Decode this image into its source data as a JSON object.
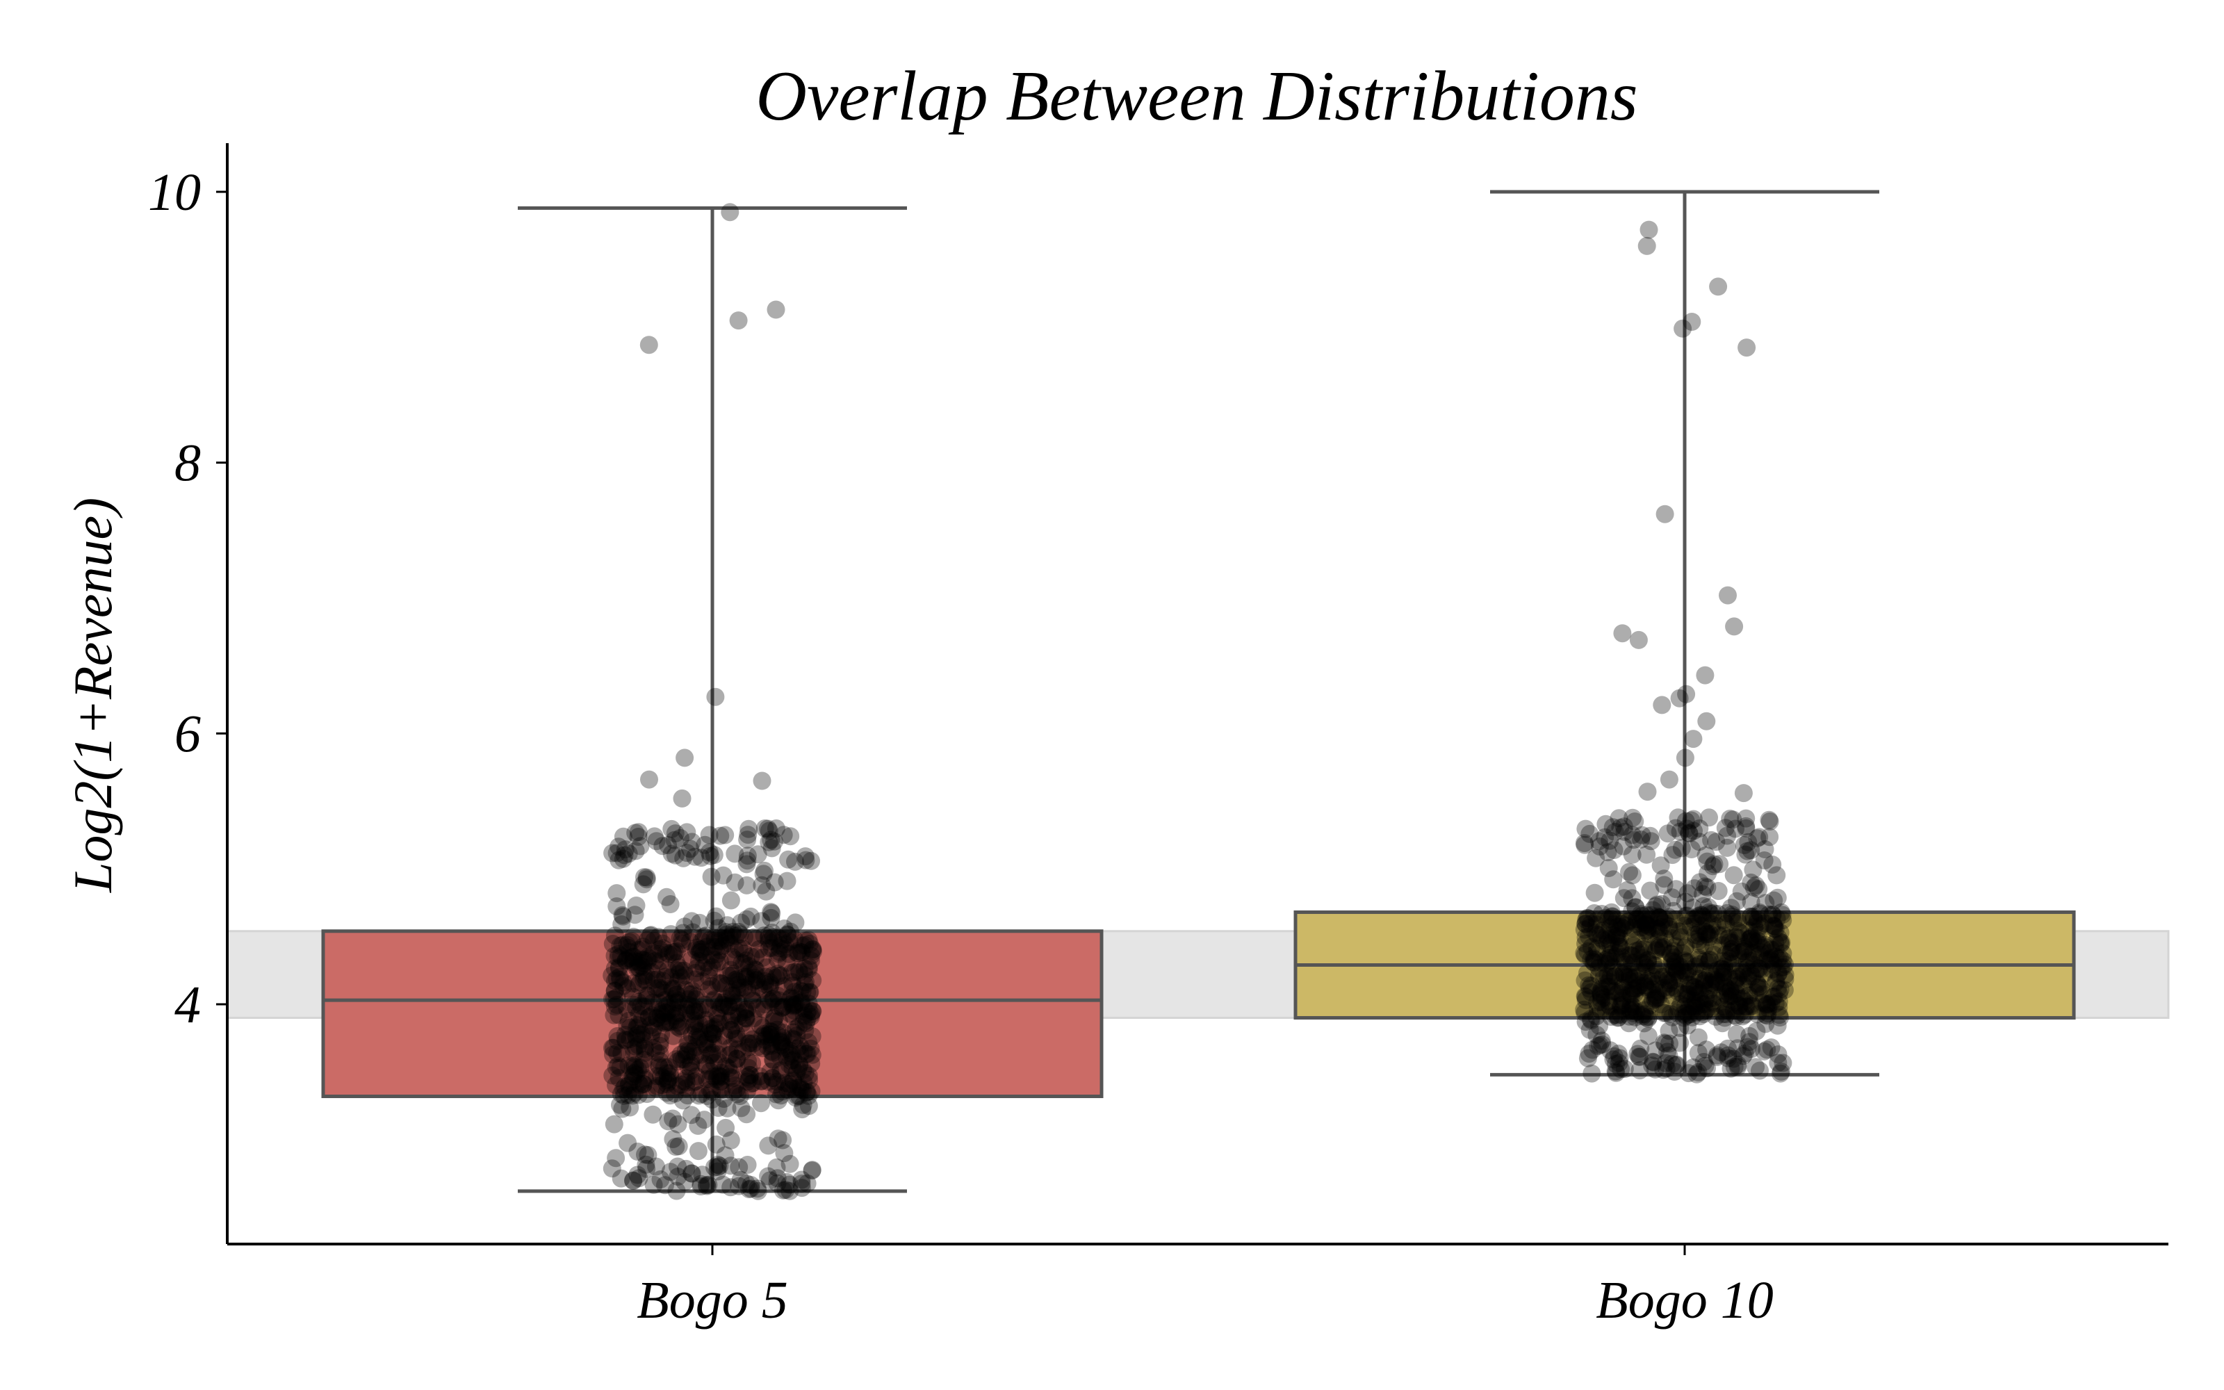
{
  "chart_data": {
    "type": "box",
    "title": "Overlap Between Distributions",
    "xlabel": "",
    "ylabel": "Log2(1+Revenue)",
    "ylim": [
      2.25,
      10.35
    ],
    "yticks": [
      4,
      6,
      8,
      10
    ],
    "ytick_labels": [
      "4",
      "6",
      "8",
      "10"
    ],
    "categories": [
      "Bogo 5",
      "Bogo 10"
    ],
    "overlap_band": {
      "low": 3.9,
      "high": 4.54,
      "color": "#e5e5e5"
    },
    "boxes": [
      {
        "name": "Bogo 5",
        "color": "#cb6b66",
        "whisker_low": 2.62,
        "q1": 3.32,
        "median": 4.03,
        "q3": 4.54,
        "whisker_high": 9.88,
        "outliers": [
          9.13,
          9.85,
          9.05,
          8.87,
          6.27,
          5.82,
          5.66,
          5.65,
          5.52
        ],
        "dense_range": [
          2.62,
          5.3
        ],
        "dense_count": 950
      },
      {
        "name": "Bogo 10",
        "color": "#ccb866",
        "whisker_low": 3.48,
        "q1": 3.9,
        "median": 4.29,
        "q3": 4.68,
        "whisker_high": 10.0,
        "outliers": [
          9.72,
          9.6,
          9.3,
          9.04,
          8.99,
          8.85,
          7.62,
          7.02,
          6.79,
          6.74,
          6.69,
          6.43,
          6.29,
          6.26,
          6.21,
          6.09,
          5.96,
          5.82,
          5.66,
          5.57,
          5.56
        ],
        "dense_range": [
          3.48,
          5.38
        ],
        "dense_count": 850
      }
    ],
    "point_color": "#000000",
    "point_alpha": 0.32
  }
}
